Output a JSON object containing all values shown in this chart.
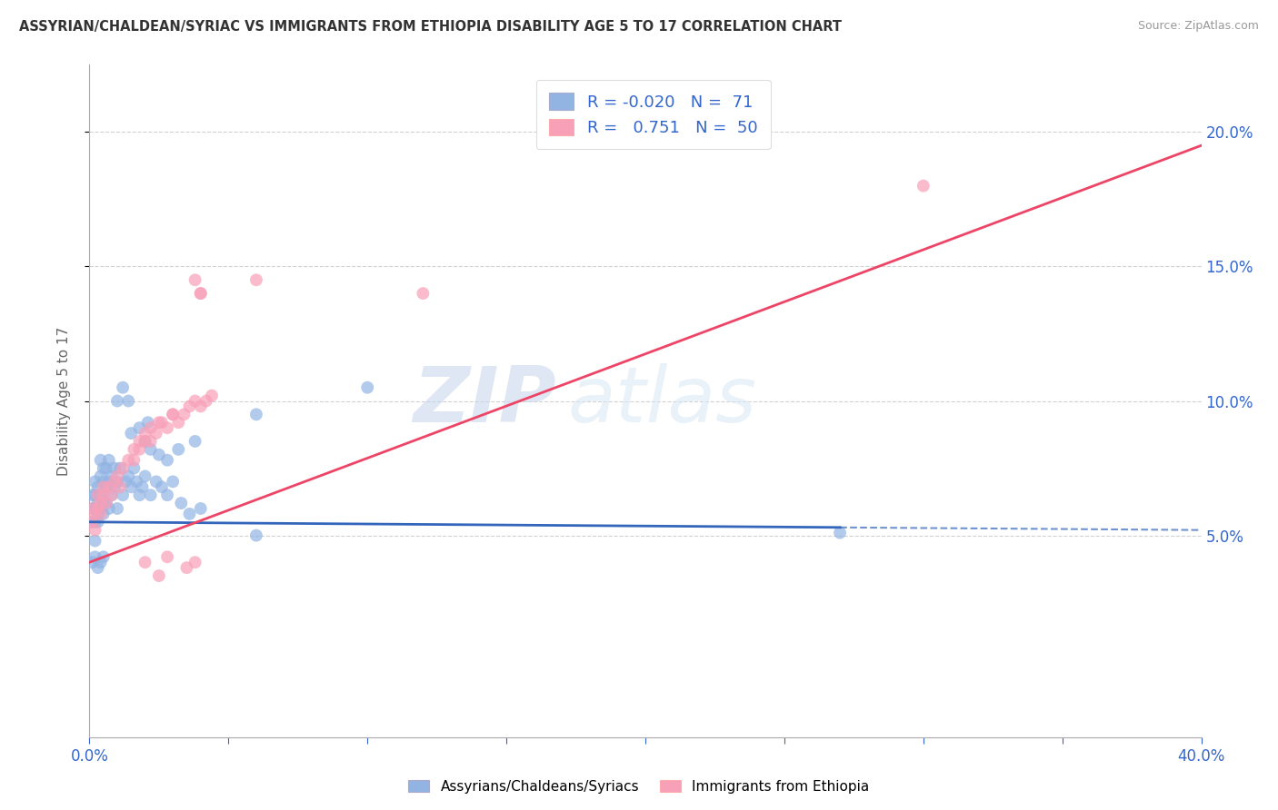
{
  "title": "ASSYRIAN/CHALDEAN/SYRIAC VS IMMIGRANTS FROM ETHIOPIA DISABILITY AGE 5 TO 17 CORRELATION CHART",
  "source": "Source: ZipAtlas.com",
  "ylabel": "Disability Age 5 to 17",
  "right_yticks": [
    0.05,
    0.1,
    0.15,
    0.2
  ],
  "right_yticklabels": [
    "5.0%",
    "10.0%",
    "15.0%",
    "20.0%"
  ],
  "xmin": 0.0,
  "xmax": 0.4,
  "ymin": -0.025,
  "ymax": 0.225,
  "blue_R": -0.02,
  "blue_N": 71,
  "pink_R": 0.751,
  "pink_N": 50,
  "blue_color": "#92B4E3",
  "pink_color": "#F8A0B8",
  "blue_line_color": "#3366BB",
  "pink_line_color": "#EE4466",
  "legend_label_blue": "Assyrians/Chaldeans/Syriacs",
  "legend_label_pink": "Immigrants from Ethiopia",
  "watermark_zip": "ZIP",
  "watermark_atlas": "atlas",
  "blue_line_solid_end": 0.27,
  "blue_line_x0": 0.0,
  "blue_line_y0": 0.055,
  "blue_line_x1": 0.4,
  "blue_line_y1": 0.052,
  "pink_line_x0": 0.0,
  "pink_line_y0": 0.04,
  "pink_line_x1": 0.4,
  "pink_line_y1": 0.195,
  "blue_scatter_x": [
    0.001,
    0.001,
    0.001,
    0.002,
    0.002,
    0.002,
    0.002,
    0.002,
    0.003,
    0.003,
    0.003,
    0.003,
    0.004,
    0.004,
    0.004,
    0.004,
    0.005,
    0.005,
    0.005,
    0.005,
    0.006,
    0.006,
    0.006,
    0.007,
    0.007,
    0.007,
    0.008,
    0.008,
    0.009,
    0.009,
    0.01,
    0.01,
    0.011,
    0.012,
    0.013,
    0.014,
    0.015,
    0.016,
    0.017,
    0.018,
    0.019,
    0.02,
    0.022,
    0.024,
    0.026,
    0.028,
    0.03,
    0.033,
    0.036,
    0.04,
    0.02,
    0.022,
    0.025,
    0.028,
    0.032,
    0.038,
    0.015,
    0.018,
    0.021,
    0.01,
    0.012,
    0.014,
    0.06,
    0.06,
    0.1,
    0.27,
    0.001,
    0.002,
    0.003,
    0.004,
    0.005
  ],
  "blue_scatter_y": [
    0.06,
    0.065,
    0.055,
    0.048,
    0.055,
    0.06,
    0.065,
    0.07,
    0.055,
    0.058,
    0.062,
    0.068,
    0.06,
    0.065,
    0.072,
    0.078,
    0.058,
    0.063,
    0.07,
    0.075,
    0.062,
    0.068,
    0.075,
    0.06,
    0.07,
    0.078,
    0.065,
    0.072,
    0.068,
    0.075,
    0.06,
    0.07,
    0.075,
    0.065,
    0.07,
    0.072,
    0.068,
    0.075,
    0.07,
    0.065,
    0.068,
    0.072,
    0.065,
    0.07,
    0.068,
    0.065,
    0.07,
    0.062,
    0.058,
    0.06,
    0.085,
    0.082,
    0.08,
    0.078,
    0.082,
    0.085,
    0.088,
    0.09,
    0.092,
    0.1,
    0.105,
    0.1,
    0.095,
    0.05,
    0.105,
    0.051,
    0.04,
    0.042,
    0.038,
    0.04,
    0.042
  ],
  "pink_scatter_x": [
    0.001,
    0.001,
    0.002,
    0.002,
    0.003,
    0.003,
    0.004,
    0.004,
    0.005,
    0.005,
    0.006,
    0.007,
    0.008,
    0.009,
    0.01,
    0.011,
    0.012,
    0.014,
    0.016,
    0.018,
    0.02,
    0.022,
    0.024,
    0.026,
    0.028,
    0.03,
    0.032,
    0.034,
    0.036,
    0.038,
    0.04,
    0.042,
    0.044,
    0.02,
    0.025,
    0.03,
    0.022,
    0.018,
    0.016,
    0.038,
    0.035,
    0.028,
    0.025,
    0.02,
    0.04,
    0.038,
    0.3,
    0.04,
    0.06,
    0.12
  ],
  "pink_scatter_y": [
    0.055,
    0.06,
    0.052,
    0.058,
    0.06,
    0.065,
    0.058,
    0.062,
    0.065,
    0.068,
    0.062,
    0.068,
    0.065,
    0.07,
    0.072,
    0.068,
    0.075,
    0.078,
    0.082,
    0.085,
    0.085,
    0.09,
    0.088,
    0.092,
    0.09,
    0.095,
    0.092,
    0.095,
    0.098,
    0.1,
    0.098,
    0.1,
    0.102,
    0.088,
    0.092,
    0.095,
    0.085,
    0.082,
    0.078,
    0.04,
    0.038,
    0.042,
    0.035,
    0.04,
    0.14,
    0.145,
    0.18,
    0.14,
    0.145,
    0.14
  ]
}
